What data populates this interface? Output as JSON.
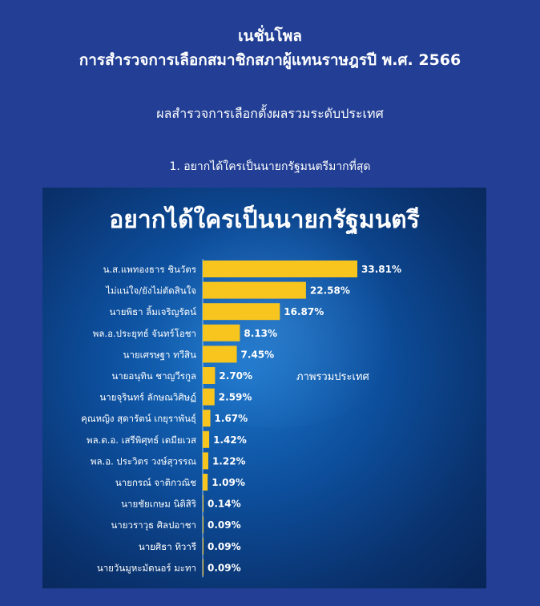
{
  "header": {
    "title": "เนชั่นโพล",
    "subtitle": "การสำรวจการเลือกสมาชิกสภาผู้แทนราษฎรปี พ.ศ. 2566",
    "section_heading": "ผลสำรวจการเลือกตั้งผลรวมระดับประเทศ",
    "question": "1. อยากได้ใครเป็นนายกรัฐมนตรีมากที่สุด"
  },
  "colors": {
    "page_background": "#223f95",
    "bar": "#f7c51e",
    "panel_background": "#0d4f9d"
  },
  "chart_data": {
    "type": "bar",
    "orientation": "horizontal",
    "title": "อยากได้ใครเป็นนายกรัฐมนตรี",
    "annotation": "ภาพรวมประเทศ",
    "categories": [
      "น.ส.แพทองธาร ชินวัตร",
      "ไม่แน่ใจ/ยังไม่ตัดสินใจ",
      "นายพิธา ลิ้มเจริญรัตน์",
      "พล.อ.ประยุทธ์ จันทร์โอชา",
      "นายเศรษฐา ทวีสิน",
      "นายอนุทิน ชาญวีรกูล",
      "นายจุรินทร์ ลักษณวิศิษฏ์",
      "คุณหญิง สุดารัตน์ เกยุราพันธุ์",
      "พล.ต.อ. เสรีพิศุทธ์ เตมียเวส",
      "พล.อ. ประวิตร วงษ์สุวรรณ",
      "นายกรณ์ จาติกวณิช",
      "นายชัยเกษม นิติสิริ",
      "นายวราวุธ ศิลปอาชา",
      "นายศิธา ทิวารี",
      "นายวันมูหะมัดนอร์ มะทา"
    ],
    "values": [
      33.81,
      22.58,
      16.87,
      8.13,
      7.45,
      2.7,
      2.59,
      1.67,
      1.42,
      1.22,
      1.09,
      0.14,
      0.09,
      0.09,
      0.09
    ],
    "labels": [
      "33.81%",
      "22.58%",
      "16.87%",
      "8.13%",
      "7.45%",
      "2.70%",
      "2.59%",
      "1.67%",
      "1.42%",
      "1.22%",
      "1.09%",
      "0.14%",
      "0.09%",
      "0.09%",
      "0.09%"
    ],
    "unit": "%",
    "xlim": [
      0,
      33.81
    ],
    "grid": false,
    "legend": "none"
  }
}
